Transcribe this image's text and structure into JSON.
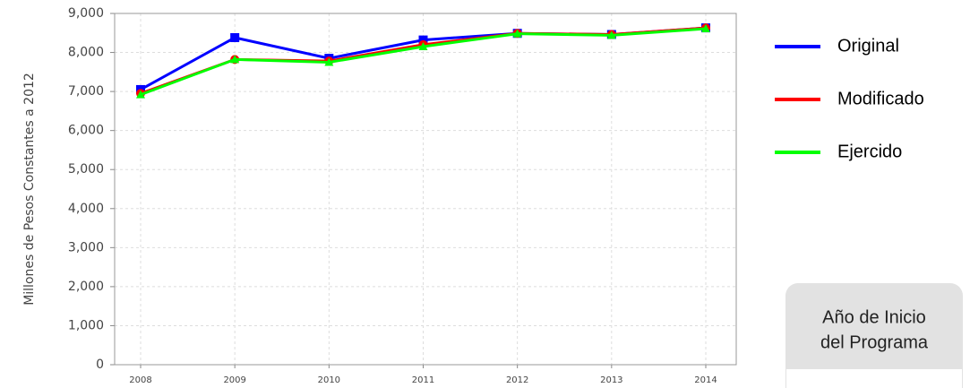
{
  "chart_data": {
    "type": "line",
    "y_label": "Millones de Pesos Constantes a 2012",
    "categories": [
      "2008",
      "2009",
      "2010",
      "2011",
      "2012",
      "2013",
      "2014"
    ],
    "series": [
      {
        "name": "Original",
        "color": "#0000ff",
        "marker": "square",
        "values": [
          7050,
          8380,
          7850,
          8320,
          8490,
          8460,
          8630
        ]
      },
      {
        "name": "Modificado",
        "color": "#ff0000",
        "marker": "circle",
        "values": [
          6950,
          7820,
          7780,
          8200,
          8490,
          8460,
          8630
        ]
      },
      {
        "name": "Ejercido",
        "color": "#00ff00",
        "marker": "triangle",
        "values": [
          6920,
          7820,
          7750,
          8150,
          8480,
          8440,
          8610
        ]
      }
    ],
    "ylim": [
      0,
      9000
    ],
    "yticks": [
      0,
      {
        "value": 1000,
        "label": "1,000"
      },
      {
        "value": 2000,
        "label": "2,000"
      },
      {
        "value": 3000,
        "label": "3,000"
      },
      {
        "value": 4000,
        "label": "4,000"
      },
      {
        "value": 5000,
        "label": "5,000"
      },
      {
        "value": 6000,
        "label": "6,000"
      },
      {
        "value": 7000,
        "label": "7,000"
      },
      {
        "value": 8000,
        "label": "8,000"
      },
      {
        "value": 9000,
        "label": "9,000"
      }
    ],
    "grid": true
  },
  "sidebar": {
    "title_lines": [
      "Año de Inicio",
      "del Programa"
    ]
  }
}
